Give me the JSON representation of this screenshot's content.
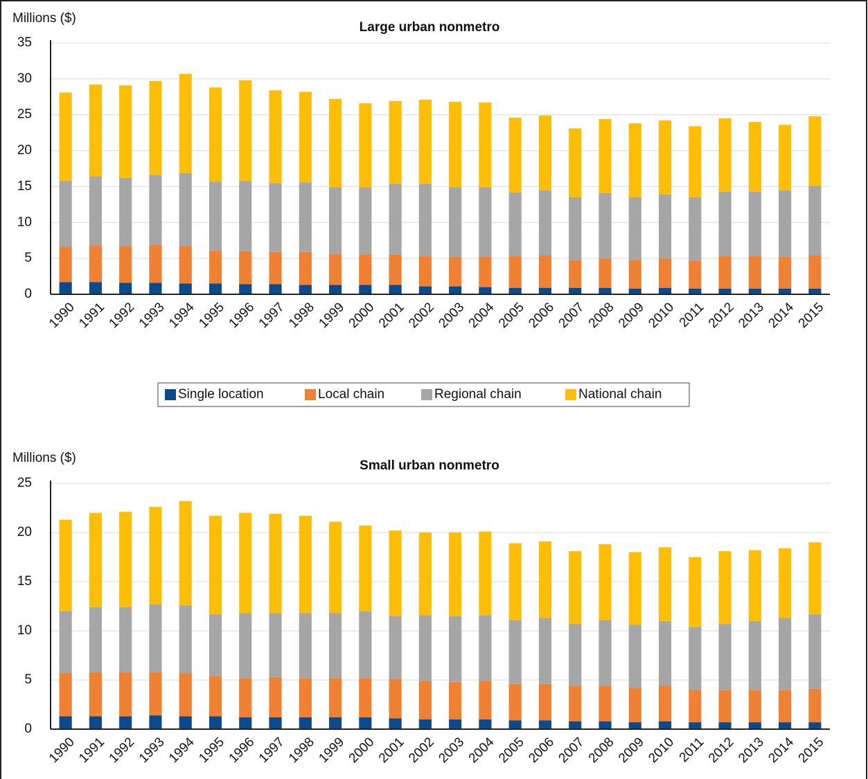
{
  "chart_data": [
    {
      "type": "bar",
      "stacked": true,
      "title": "Large urban nonmetro",
      "y_label": "Millions ($)",
      "categories": [
        "1990",
        "1991",
        "1992",
        "1993",
        "1994",
        "1995",
        "1996",
        "1997",
        "1998",
        "1999",
        "2000",
        "2001",
        "2002",
        "2003",
        "2004",
        "2005",
        "2006",
        "2007",
        "2008",
        "2009",
        "2010",
        "2011",
        "2012",
        "2013",
        "2014",
        "2015"
      ],
      "series": [
        {
          "name": "Single location",
          "color": "#0c4a8c",
          "values": [
            1.7,
            1.7,
            1.6,
            1.6,
            1.5,
            1.5,
            1.4,
            1.4,
            1.3,
            1.3,
            1.3,
            1.3,
            1.1,
            1.1,
            1.0,
            0.9,
            0.9,
            0.9,
            0.9,
            0.8,
            0.9,
            0.8,
            0.8,
            0.8,
            0.8,
            0.8
          ]
        },
        {
          "name": "Local chain",
          "color": "#ef8134",
          "values": [
            4.9,
            5.1,
            5.1,
            5.3,
            5.2,
            4.6,
            4.6,
            4.5,
            4.6,
            4.3,
            4.2,
            4.2,
            4.2,
            4.1,
            4.2,
            4.4,
            4.5,
            3.9,
            4.1,
            4.0,
            4.1,
            3.9,
            4.5,
            4.5,
            4.4,
            4.6
          ]
        },
        {
          "name": "Regional chain",
          "color": "#a6a6a6",
          "values": [
            9.2,
            9.6,
            9.5,
            9.7,
            10.2,
            9.6,
            9.8,
            9.6,
            9.7,
            9.3,
            9.4,
            9.9,
            10.1,
            9.7,
            9.7,
            8.9,
            9.1,
            8.7,
            9.1,
            8.7,
            8.9,
            8.8,
            9.0,
            9.0,
            9.3,
            9.7
          ]
        },
        {
          "name": "National chain",
          "color": "#fdbe0a",
          "values": [
            12.3,
            12.8,
            12.9,
            13.1,
            13.8,
            13.1,
            14.0,
            12.9,
            12.6,
            12.3,
            11.7,
            11.5,
            11.7,
            11.9,
            11.8,
            10.4,
            10.4,
            9.6,
            10.3,
            10.3,
            10.3,
            9.9,
            10.2,
            9.7,
            9.1,
            9.7
          ]
        }
      ],
      "ylim": [
        0,
        35
      ],
      "yticks": [
        0,
        5,
        10,
        15,
        20,
        25,
        30,
        35
      ],
      "grid": true
    },
    {
      "type": "bar",
      "stacked": true,
      "title": "Small urban nonmetro",
      "y_label": "Millions ($)",
      "categories": [
        "1990",
        "1991",
        "1992",
        "1993",
        "1994",
        "1995",
        "1996",
        "1997",
        "1998",
        "1999",
        "2000",
        "2001",
        "2002",
        "2003",
        "2004",
        "2005",
        "2006",
        "2007",
        "2008",
        "2009",
        "2010",
        "2011",
        "2012",
        "2013",
        "2014",
        "2015"
      ],
      "series": [
        {
          "color": "#0c4a8c",
          "values": [
            1.3,
            1.3,
            1.3,
            1.4,
            1.3,
            1.3,
            1.2,
            1.2,
            1.2,
            1.2,
            1.2,
            1.1,
            1.0,
            1.0,
            1.0,
            0.9,
            0.9,
            0.8,
            0.8,
            0.7,
            0.8,
            0.7,
            0.7,
            0.7,
            0.7,
            0.7
          ]
        },
        {
          "color": "#ef8134",
          "values": [
            4.4,
            4.5,
            4.5,
            4.4,
            4.4,
            4.1,
            4.0,
            4.1,
            4.0,
            4.0,
            4.0,
            4.0,
            3.9,
            3.8,
            3.9,
            3.7,
            3.7,
            3.6,
            3.6,
            3.5,
            3.6,
            3.3,
            3.3,
            3.3,
            3.3,
            3.4
          ]
        },
        {
          "color": "#a6a6a6",
          "values": [
            6.3,
            6.6,
            6.6,
            6.9,
            6.9,
            6.3,
            6.6,
            6.5,
            6.6,
            6.6,
            6.8,
            6.4,
            6.7,
            6.7,
            6.7,
            6.5,
            6.7,
            6.3,
            6.7,
            6.4,
            6.6,
            6.4,
            6.7,
            7.0,
            7.3,
            7.6
          ]
        },
        {
          "color": "#fdbe0a",
          "values": [
            9.3,
            9.6,
            9.7,
            9.9,
            10.6,
            10.0,
            10.2,
            10.1,
            9.9,
            9.3,
            8.7,
            8.7,
            8.4,
            8.5,
            8.5,
            7.8,
            7.8,
            7.4,
            7.7,
            7.4,
            7.5,
            7.1,
            7.4,
            7.2,
            7.1,
            7.3
          ]
        }
      ],
      "ylim": [
        0,
        25
      ],
      "yticks": [
        0,
        5,
        10,
        15,
        20,
        25
      ],
      "grid": true
    }
  ]
}
